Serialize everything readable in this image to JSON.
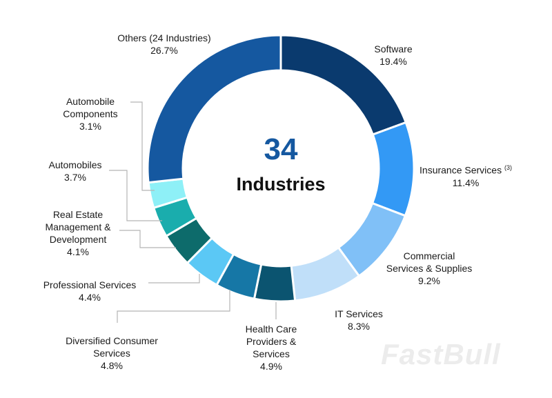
{
  "chart_data": {
    "type": "pie",
    "donut": true,
    "center_value": "34",
    "center_label": "Industries",
    "slices": [
      {
        "label": "Software",
        "value": 19.4,
        "display": "19.4%",
        "color": "#0a3a6e"
      },
      {
        "label": "Insurance Services",
        "footnote": "(3)",
        "value": 11.4,
        "display": "11.4%",
        "color": "#3399f5"
      },
      {
        "label": "Commercial Services & Supplies",
        "value": 9.2,
        "display": "9.2%",
        "color": "#80c0f7"
      },
      {
        "label": "IT Services",
        "value": 8.3,
        "display": "8.3%",
        "color": "#c0dff9"
      },
      {
        "label": "Health Care Providers & Services",
        "value": 4.9,
        "display": "4.9%",
        "color": "#0b5470"
      },
      {
        "label": "Diversified Consumer Services",
        "value": 4.8,
        "display": "4.8%",
        "color": "#1677a6"
      },
      {
        "label": "Professional Services",
        "value": 4.4,
        "display": "4.4%",
        "color": "#5bc8f5"
      },
      {
        "label": "Real Estate Management & Development",
        "value": 4.1,
        "display": "4.1%",
        "color": "#0d6b6b"
      },
      {
        "label": "Automobiles",
        "value": 3.7,
        "display": "3.7%",
        "color": "#1aadad"
      },
      {
        "label": "Automobile Components",
        "value": 3.1,
        "display": "3.1%",
        "color": "#8ef0f7"
      },
      {
        "label": "Others (24 Industries)",
        "value": 26.7,
        "display": "26.7%",
        "color": "#1558a0"
      }
    ]
  },
  "watermark": "FastBull"
}
